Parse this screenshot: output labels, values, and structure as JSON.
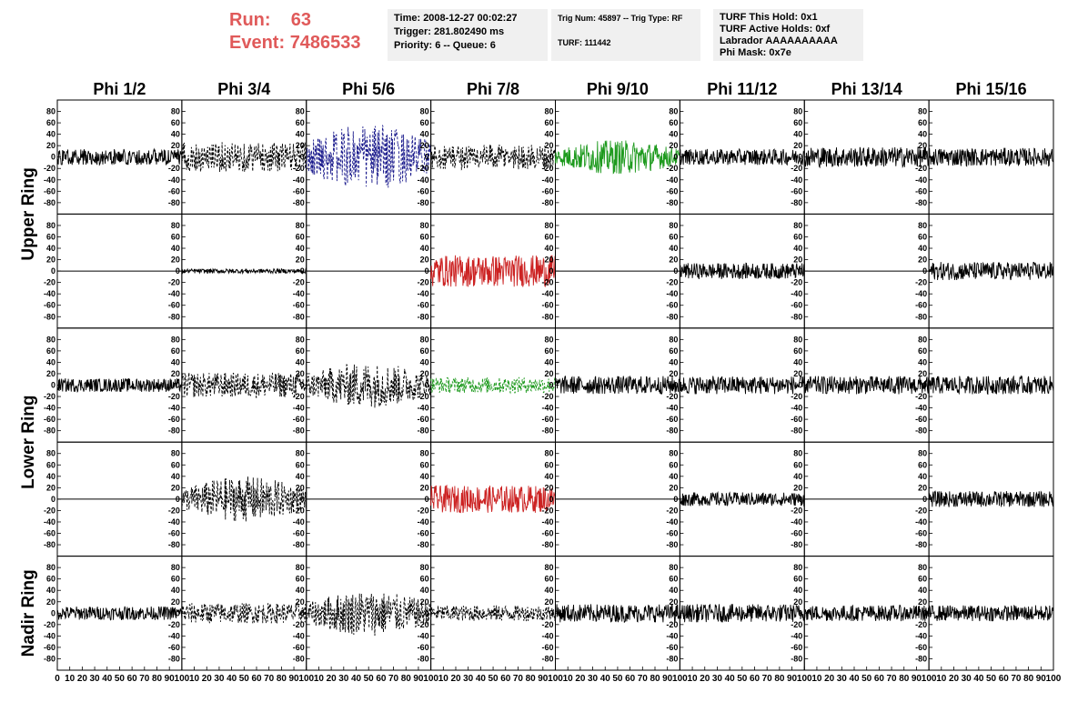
{
  "header": {
    "run_label": "Run:",
    "run_value": "63",
    "event_label": "Event:",
    "event_value": "7486533",
    "time_line": "Time: 2008-12-27 00:02:27",
    "trigger_line": "Trigger: 281.802490 ms",
    "priority_line": "Priority: 6 -- Queue: 6",
    "trig_num_line": "Trig Num: 45897 -- Trig Type: RF",
    "turf_line": "TURF: 111442",
    "turf_hold_line": "TURF This Hold: 0x1",
    "turf_active_line": "TURF Active Holds: 0xf",
    "labrador_line": "Labrador AAAAAAAAAA",
    "phi_mask_line": "Phi Mask: 0x7e"
  },
  "chart_data": {
    "type": "line",
    "columns": [
      "Phi 1/2",
      "Phi 3/4",
      "Phi 5/6",
      "Phi 7/8",
      "Phi 9/10",
      "Phi 11/12",
      "Phi 13/14",
      "Phi 15/16"
    ],
    "ring_labels": [
      {
        "text": "Upper Ring",
        "rows": [
          0,
          1
        ]
      },
      {
        "text": "Lower Ring",
        "rows": [
          2,
          3
        ]
      },
      {
        "text": "Nadir Ring",
        "rows": [
          4
        ]
      }
    ],
    "xlim": [
      0,
      100
    ],
    "ylim": [
      -100,
      100
    ],
    "y_ticks": [
      "80",
      "60",
      "40",
      "20",
      "0",
      "-20",
      "-40",
      "-60",
      "-80"
    ],
    "y_tick_values": [
      80,
      60,
      40,
      20,
      0,
      -20,
      -40,
      -60,
      -80
    ],
    "x_ticks_first": [
      "0",
      "10",
      "20",
      "30",
      "40",
      "50",
      "60",
      "70",
      "80",
      "90",
      "100"
    ],
    "x_ticks": [
      "10",
      "20",
      "30",
      "40",
      "50",
      "60",
      "70",
      "80",
      "90",
      "100"
    ],
    "x_tick_values": [
      0,
      10,
      20,
      30,
      40,
      50,
      60,
      70,
      80,
      90,
      100
    ],
    "colors": {
      "black": "#000000",
      "blue": "#1a1a8c",
      "green": "#1e9a1e",
      "red": "#cc2222"
    },
    "panels": [
      [
        {
          "style": "solid",
          "color": "black",
          "amp": 14,
          "env": "flat"
        },
        {
          "style": "dashed",
          "color": "black",
          "amp": 26,
          "env": "flat"
        },
        {
          "style": "dashed",
          "color": "blue",
          "amp": 58,
          "env": "center"
        },
        {
          "style": "dashed",
          "color": "black",
          "amp": 22,
          "env": "flat"
        },
        {
          "style": "solid",
          "color": "green",
          "amp": 30,
          "env": "center"
        },
        {
          "style": "solid",
          "color": "black",
          "amp": 14,
          "env": "flat"
        },
        {
          "style": "solid",
          "color": "black",
          "amp": 18,
          "env": "flat"
        },
        {
          "style": "solid",
          "color": "black",
          "amp": 16,
          "env": "flat"
        }
      ],
      [
        {
          "style": "flat",
          "color": "black",
          "amp": 0,
          "env": "flat"
        },
        {
          "style": "solid",
          "color": "black",
          "amp": 4,
          "env": "flat"
        },
        {
          "style": "flat",
          "color": "black",
          "amp": 0,
          "env": "flat"
        },
        {
          "style": "solid",
          "color": "red",
          "amp": 28,
          "env": "flat"
        },
        {
          "style": "flat",
          "color": "black",
          "amp": 0,
          "env": "flat"
        },
        {
          "style": "solid",
          "color": "black",
          "amp": 14,
          "env": "flat"
        },
        {
          "style": "flat",
          "color": "black",
          "amp": 0,
          "env": "flat"
        },
        {
          "style": "solid",
          "color": "black",
          "amp": 16,
          "env": "flat"
        }
      ],
      [
        {
          "style": "solid",
          "color": "black",
          "amp": 12,
          "env": "flat"
        },
        {
          "style": "dashed",
          "color": "black",
          "amp": 22,
          "env": "flat"
        },
        {
          "style": "dashed",
          "color": "black",
          "amp": 40,
          "env": "center"
        },
        {
          "style": "dashed",
          "color": "green",
          "amp": 14,
          "env": "flat"
        },
        {
          "style": "solid",
          "color": "black",
          "amp": 16,
          "env": "flat"
        },
        {
          "style": "solid",
          "color": "black",
          "amp": 16,
          "env": "flat"
        },
        {
          "style": "solid",
          "color": "black",
          "amp": 16,
          "env": "flat"
        },
        {
          "style": "solid",
          "color": "black",
          "amp": 16,
          "env": "flat"
        }
      ],
      [
        {
          "style": "flat",
          "color": "black",
          "amp": 0,
          "env": "flat"
        },
        {
          "style": "dashed",
          "color": "black",
          "amp": 40,
          "env": "center"
        },
        {
          "style": "flat",
          "color": "black",
          "amp": 0,
          "env": "flat"
        },
        {
          "style": "solid",
          "color": "red",
          "amp": 24,
          "env": "flat"
        },
        {
          "style": "flat",
          "color": "black",
          "amp": 0,
          "env": "flat"
        },
        {
          "style": "solid",
          "color": "black",
          "amp": 12,
          "env": "flat"
        },
        {
          "style": "flat",
          "color": "black",
          "amp": 0,
          "env": "flat"
        },
        {
          "style": "solid",
          "color": "black",
          "amp": 14,
          "env": "flat"
        }
      ],
      [
        {
          "style": "solid",
          "color": "black",
          "amp": 12,
          "env": "flat"
        },
        {
          "style": "dashed",
          "color": "black",
          "amp": 18,
          "env": "flat"
        },
        {
          "style": "dashed",
          "color": "black",
          "amp": 40,
          "env": "center"
        },
        {
          "style": "dashed",
          "color": "black",
          "amp": 14,
          "env": "flat"
        },
        {
          "style": "solid",
          "color": "black",
          "amp": 16,
          "env": "flat"
        },
        {
          "style": "solid",
          "color": "black",
          "amp": 16,
          "env": "flat"
        },
        {
          "style": "solid",
          "color": "black",
          "amp": 14,
          "env": "flat"
        },
        {
          "style": "solid",
          "color": "black",
          "amp": 14,
          "env": "flat"
        }
      ]
    ]
  }
}
